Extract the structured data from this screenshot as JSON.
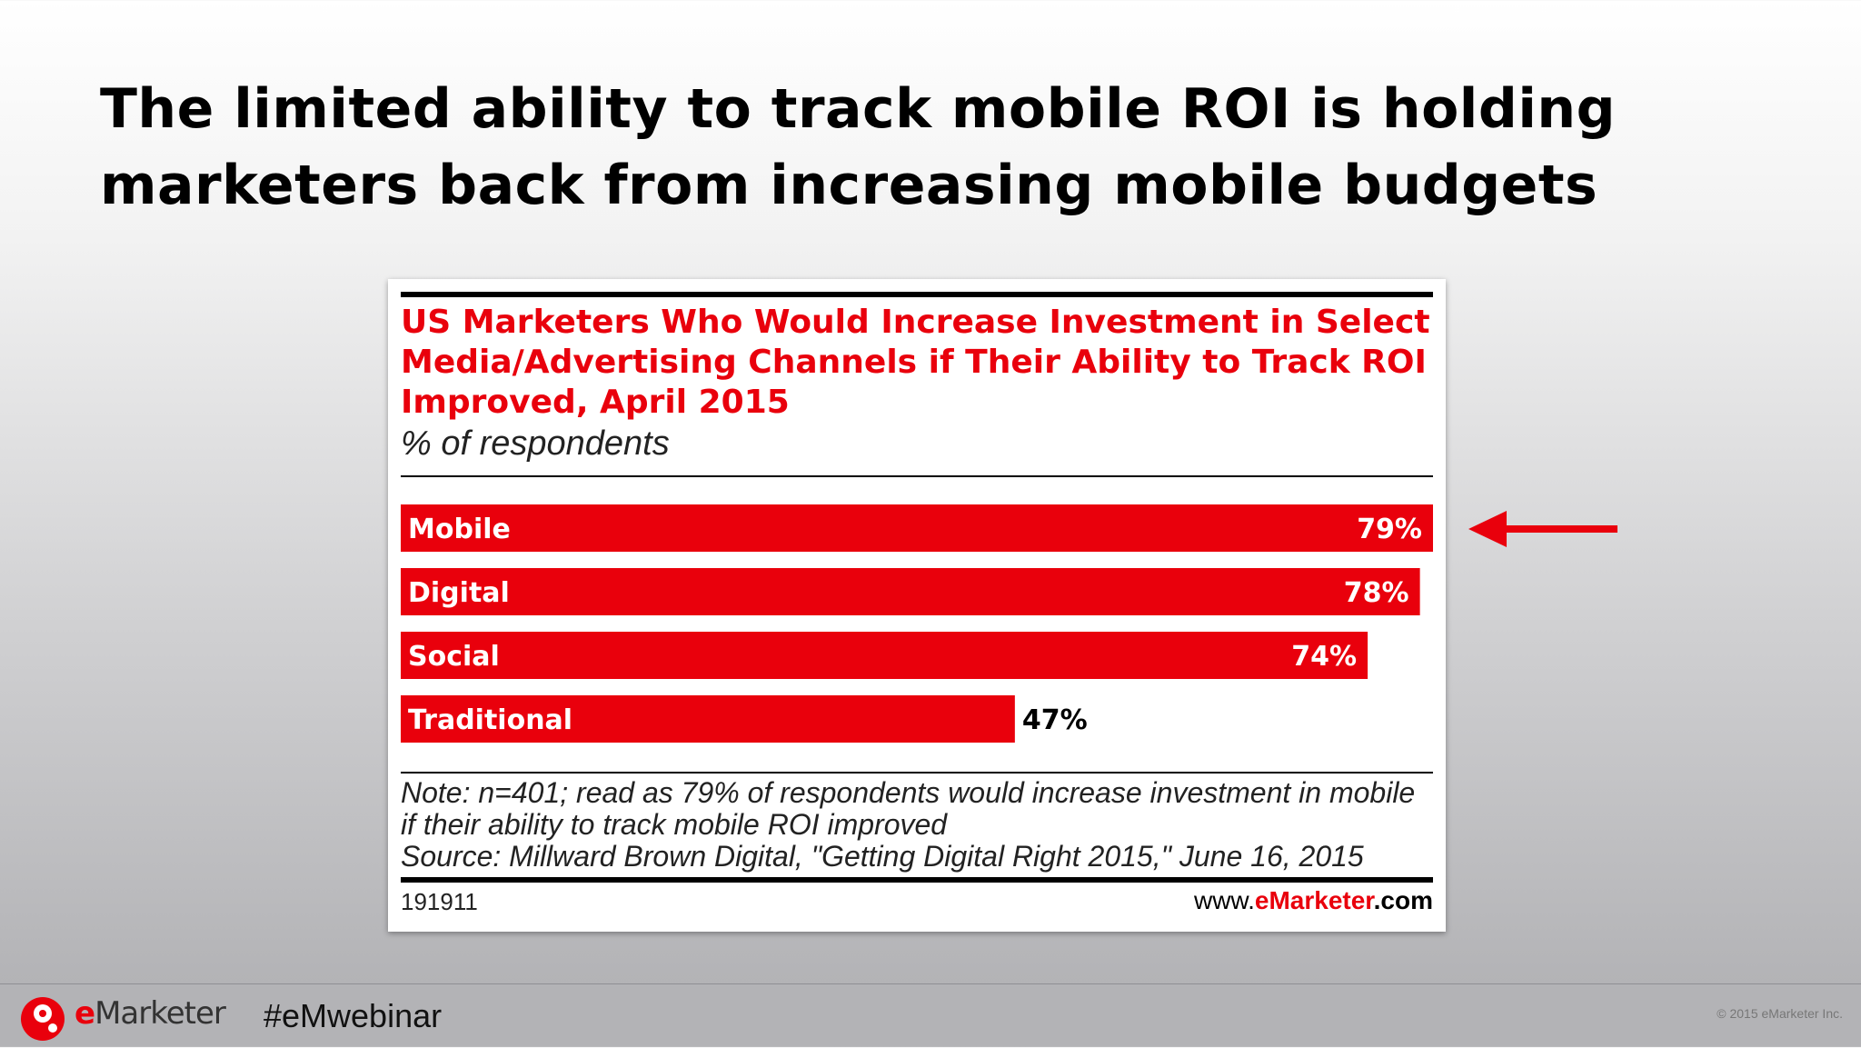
{
  "slide": {
    "title": "The limited ability to track mobile ROI is holding marketers back from increasing mobile budgets"
  },
  "chart_data": {
    "type": "bar",
    "orientation": "horizontal",
    "title": "US Marketers Who Would Increase Investment in Select Media/Advertising Channels if Their Ability to Track ROI Improved, April 2015",
    "subtitle": "% of respondents",
    "categories": [
      "Mobile",
      "Digital",
      "Social",
      "Traditional"
    ],
    "values": [
      79,
      78,
      74,
      47
    ],
    "value_labels": [
      "79%",
      "78%",
      "74%",
      "47%"
    ],
    "xlim": [
      0,
      79
    ],
    "bar_color": "#e9000c",
    "grid": false,
    "legend": "none",
    "note": "Note: n=401; read as 79% of respondents would increase investment in mobile if their ability to track mobile ROI improved",
    "source": "Source: Millward Brown Digital, \"Getting Digital Right 2015,\" June 16, 2015",
    "chart_id": "191911",
    "url": {
      "prefix": "www.",
      "brand": "eMarketer",
      "suffix": ".com"
    }
  },
  "annotation": {
    "arrow_icon": "left-arrow-icon",
    "arrow_color": "#e9000c"
  },
  "footer": {
    "logo_e": "e",
    "logo_rest": "Marketer",
    "hashtag": "#eMwebinar",
    "copyright": "© 2015 eMarketer Inc."
  }
}
